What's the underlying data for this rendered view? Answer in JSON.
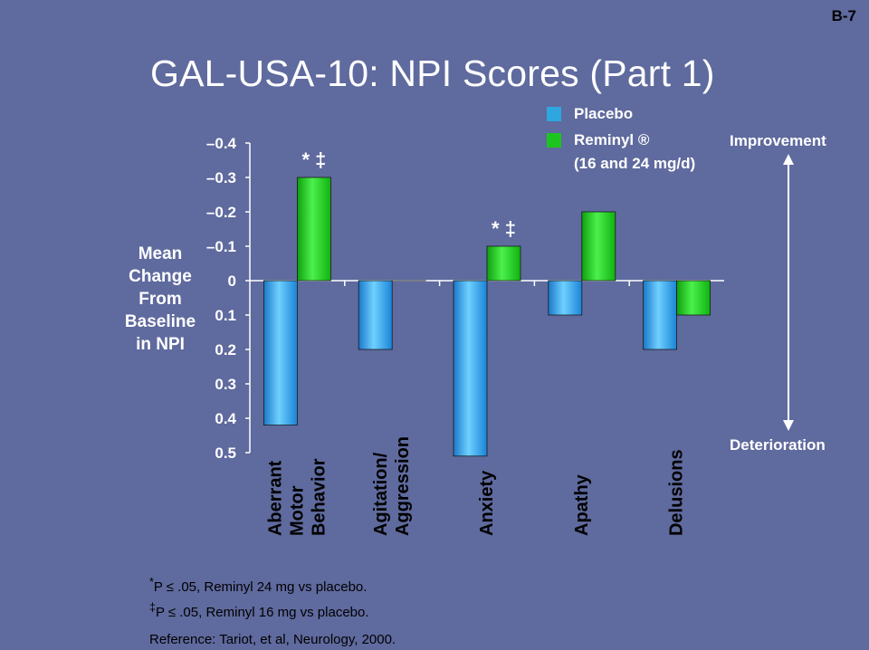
{
  "page_tag": "B-7",
  "title": "GAL-USA-10: NPI Scores (Part 1)",
  "y_axis_label_lines": [
    "Mean",
    "Change",
    "From",
    "Baseline",
    "in NPI"
  ],
  "legend": {
    "items": [
      {
        "label": "Placebo",
        "color": "#2ea6e0"
      },
      {
        "label": "Reminyl ®",
        "color": "#1ec41e"
      }
    ],
    "note": "(16 and 24 mg/d)"
  },
  "direction_labels": {
    "up": "Improvement",
    "down": "Deterioration"
  },
  "footnotes": [
    {
      "marker": "*",
      "text": "P ≤ .05, Reminyl 24 mg vs placebo."
    },
    {
      "marker": "‡",
      "text": "P ≤ .05, Reminyl 16 mg vs placebo."
    },
    {
      "text": "Reference: Tariot, et al, Neurology, 2000."
    }
  ],
  "chart_data": {
    "type": "bar",
    "y_axis_inverted_meaning": "positive = improvement",
    "ylim": [
      -0.5,
      0.4
    ],
    "y_ticks": [
      {
        "value": 0.4,
        "label": "–0.4"
      },
      {
        "value": 0.3,
        "label": "–0.3"
      },
      {
        "value": 0.2,
        "label": "–0.2"
      },
      {
        "value": 0.1,
        "label": "–0.1"
      },
      {
        "value": 0,
        "label": "0"
      },
      {
        "value": -0.1,
        "label": "0.1"
      },
      {
        "value": -0.2,
        "label": "0.2"
      },
      {
        "value": -0.3,
        "label": "0.3"
      },
      {
        "value": -0.4,
        "label": "0.4"
      },
      {
        "value": -0.5,
        "label": "0.5"
      }
    ],
    "categories": [
      [
        "Aberrant",
        "Motor",
        "Behavior"
      ],
      [
        "Agitation/",
        "Aggression"
      ],
      [
        "Anxiety"
      ],
      [
        "Apathy"
      ],
      [
        "Delusions"
      ]
    ],
    "series": [
      {
        "name": "Placebo",
        "values": [
          -0.42,
          -0.2,
          -0.51,
          -0.1,
          -0.2
        ]
      },
      {
        "name": "Reminyl",
        "values": [
          0.3,
          0,
          0.1,
          0.2,
          -0.1
        ]
      }
    ],
    "annotations": [
      {
        "category_index": 0,
        "series": "Reminyl",
        "text": "* ‡"
      },
      {
        "category_index": 2,
        "series": "Reminyl",
        "text": "* ‡"
      }
    ]
  }
}
